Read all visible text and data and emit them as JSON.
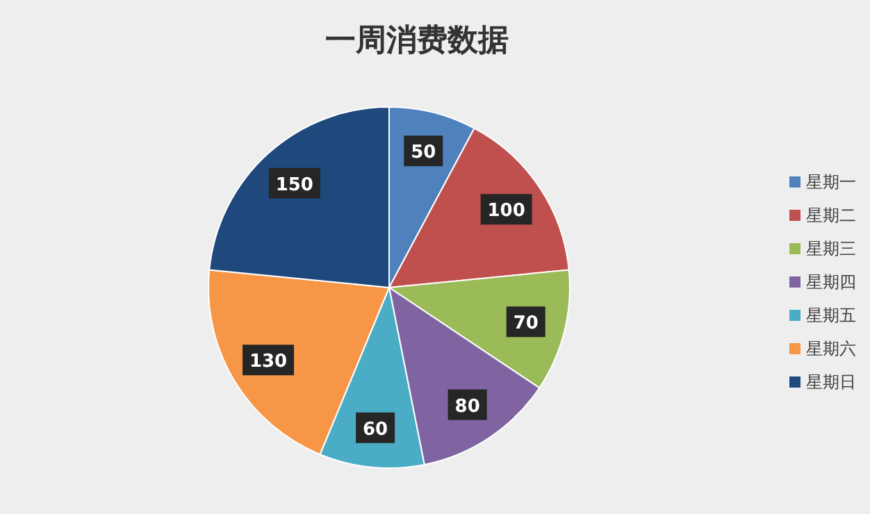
{
  "chart_data": {
    "type": "pie",
    "title": "一周消费数据",
    "categories": [
      "星期一",
      "星期二",
      "星期三",
      "星期四",
      "星期五",
      "星期六",
      "星期日"
    ],
    "values": [
      50,
      100,
      70,
      80,
      60,
      130,
      150
    ],
    "colors": [
      "#4f81bd",
      "#c0504d",
      "#9bbb59",
      "#8064a2",
      "#4bacc6",
      "#f79646",
      "#1f497d"
    ],
    "data_labels": true,
    "legend": "right"
  }
}
